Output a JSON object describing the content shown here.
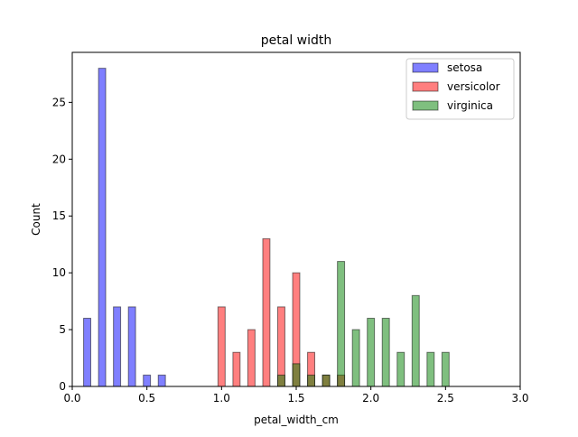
{
  "chart_data": {
    "type": "bar",
    "title": "petal width",
    "xlabel": "petal_width_cm",
    "ylabel": "Count",
    "xlim": [
      0.0,
      3.0
    ],
    "ylim": [
      0,
      29.4
    ],
    "xticks": [
      0.0,
      0.5,
      1.0,
      1.5,
      2.0,
      2.5,
      3.0
    ],
    "xtick_labels": [
      "0.0",
      "0.5",
      "1.0",
      "1.5",
      "2.0",
      "2.5",
      "3.0"
    ],
    "yticks": [
      0,
      5,
      10,
      15,
      20,
      25
    ],
    "ytick_labels": [
      "0",
      "5",
      "10",
      "15",
      "20",
      "25"
    ],
    "grid": false,
    "legend_position": "top-right",
    "bar_width": 0.048,
    "series": [
      {
        "name": "setosa",
        "color": "#0000ff",
        "bars": [
          {
            "x": 0.1,
            "count": 6
          },
          {
            "x": 0.2,
            "count": 28
          },
          {
            "x": 0.3,
            "count": 7
          },
          {
            "x": 0.4,
            "count": 7
          },
          {
            "x": 0.5,
            "count": 1
          },
          {
            "x": 0.6,
            "count": 1
          }
        ]
      },
      {
        "name": "versicolor",
        "color": "#ff0000",
        "bars": [
          {
            "x": 1.0,
            "count": 7
          },
          {
            "x": 1.1,
            "count": 3
          },
          {
            "x": 1.2,
            "count": 5
          },
          {
            "x": 1.3,
            "count": 13
          },
          {
            "x": 1.4,
            "count": 7
          },
          {
            "x": 1.5,
            "count": 10
          },
          {
            "x": 1.6,
            "count": 3
          },
          {
            "x": 1.7,
            "count": 1
          },
          {
            "x": 1.8,
            "count": 1
          }
        ]
      },
      {
        "name": "virginica",
        "color": "#008000",
        "bars": [
          {
            "x": 1.4,
            "count": 1
          },
          {
            "x": 1.5,
            "count": 2
          },
          {
            "x": 1.6,
            "count": 1
          },
          {
            "x": 1.7,
            "count": 1
          },
          {
            "x": 1.8,
            "count": 11
          },
          {
            "x": 1.9,
            "count": 5
          },
          {
            "x": 2.0,
            "count": 6
          },
          {
            "x": 2.1,
            "count": 6
          },
          {
            "x": 2.2,
            "count": 3
          },
          {
            "x": 2.3,
            "count": 8
          },
          {
            "x": 2.4,
            "count": 3
          },
          {
            "x": 2.5,
            "count": 3
          }
        ]
      }
    ]
  }
}
